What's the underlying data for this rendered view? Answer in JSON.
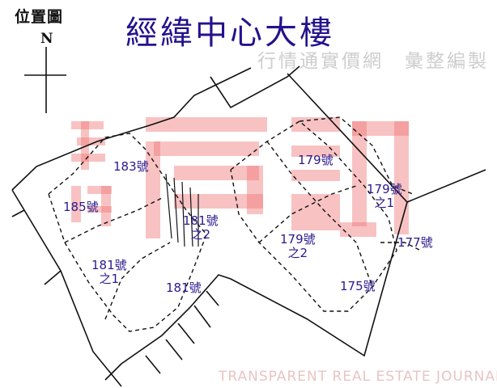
{
  "header": {
    "legend_title": "位置圖",
    "north_label": "N",
    "title": "經緯中心大樓"
  },
  "watermark": {
    "logo_small": "透明",
    "logo_big": "房訊",
    "english": "TRANSPARENT REAL ESTATE JOURNAL",
    "chinese": "行情通實價網　彙整編製",
    "color": "#f08080"
  },
  "lots": [
    {
      "label": "183號"
    },
    {
      "label": "179號"
    },
    {
      "label": "179號",
      "sub": "之1"
    },
    {
      "label": "185號"
    },
    {
      "label": "181號",
      "sub": "之2"
    },
    {
      "label": "179號",
      "sub": "之2"
    },
    {
      "label": "177號"
    },
    {
      "label": "181號",
      "sub": "之1"
    },
    {
      "label": "181號"
    },
    {
      "label": "175號"
    }
  ],
  "colors": {
    "title": "#24128c",
    "lot_label": "#2b1a8e",
    "lines": "#111111"
  }
}
